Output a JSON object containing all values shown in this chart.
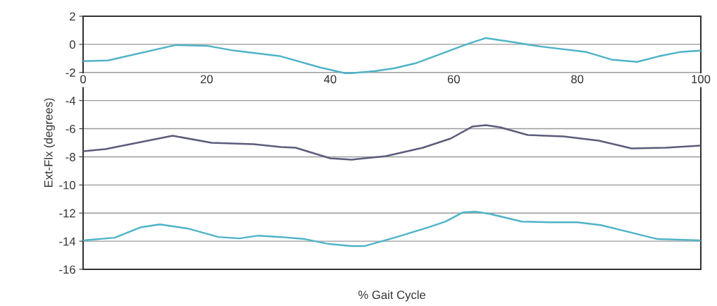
{
  "chart_data": {
    "type": "line",
    "xlabel": "% Gait Cycle",
    "ylabel": "Ext-Flx (degrees)",
    "xlim": [
      0,
      100
    ],
    "xticks": [
      0,
      20,
      40,
      60,
      80,
      100
    ],
    "ylim": [
      -16,
      2
    ],
    "yticks": [
      -16,
      -14,
      -12,
      -10,
      -8,
      -6,
      -4,
      -2,
      0,
      2
    ],
    "grid": "y",
    "line_style": "solid",
    "marker": "none",
    "series": [
      {
        "color": "#4fb3c8",
        "x": [
          0,
          4,
          15,
          20,
          24.5,
          32,
          38.4,
          42.4,
          43.5,
          47.3,
          50.4,
          53.8,
          58.4,
          62.4,
          65.2,
          69.8,
          74,
          81.5,
          85.7,
          89.7,
          93.2,
          96.6,
          100
        ],
        "values": [
          -1.2,
          -1.15,
          -0.05,
          -0.1,
          -0.45,
          -0.85,
          -1.65,
          -2.05,
          -2.05,
          -1.9,
          -1.7,
          -1.35,
          -0.6,
          0.05,
          0.45,
          0.15,
          -0.15,
          -0.55,
          -1.1,
          -1.25,
          -0.85,
          -0.55,
          -0.45
        ]
      },
      {
        "color": "#5c5c7c",
        "x": [
          0,
          3.6,
          14.5,
          20.8,
          27.6,
          32,
          34.4,
          40,
          43.5,
          49,
          55,
          59.5,
          63,
          65.2,
          67.5,
          72,
          77.8,
          83.5,
          88.8,
          94.3,
          100
        ],
        "values": [
          -7.6,
          -7.45,
          -6.5,
          -7.0,
          -7.1,
          -7.3,
          -7.35,
          -8.1,
          -8.2,
          -7.95,
          -7.35,
          -6.7,
          -5.85,
          -5.75,
          -5.9,
          -6.45,
          -6.55,
          -6.85,
          -7.4,
          -7.35,
          -7.2
        ]
      },
      {
        "color": "#4fb3c8",
        "x": [
          0,
          5.1,
          9.4,
          12.4,
          17,
          21.9,
          25.3,
          28.4,
          32,
          35.9,
          39.8,
          43.5,
          45.5,
          50.4,
          56,
          58.7,
          61.5,
          63.5,
          65.8,
          71,
          75.5,
          80,
          83.8,
          88.4,
          93,
          100
        ],
        "values": [
          -13.95,
          -13.75,
          -13.0,
          -12.8,
          -13.1,
          -13.7,
          -13.8,
          -13.6,
          -13.7,
          -13.85,
          -14.2,
          -14.35,
          -14.35,
          -13.75,
          -13.0,
          -12.6,
          -11.95,
          -11.9,
          -12.05,
          -12.6,
          -12.65,
          -12.65,
          -12.85,
          -13.35,
          -13.85,
          -13.95
        ]
      }
    ]
  }
}
